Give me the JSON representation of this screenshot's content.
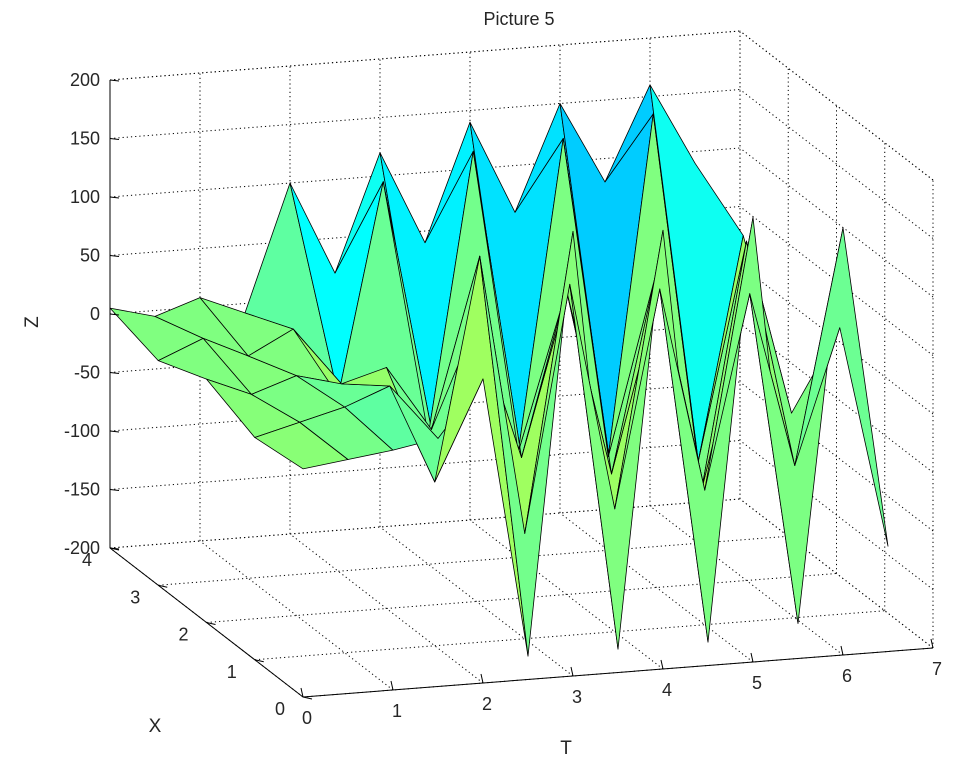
{
  "chart_data": {
    "type": "surface",
    "title": "Picture 5",
    "xlabel": "T",
    "ylabel": "X",
    "zlabel": "Z",
    "t_ticks": [
      "0",
      "1",
      "2",
      "3",
      "4",
      "5",
      "6",
      "7"
    ],
    "x_ticks": [
      "0",
      "1",
      "2",
      "3",
      "4"
    ],
    "z_ticks": [
      "200",
      "150",
      "100",
      "50",
      "0",
      "-50",
      "-100",
      "-150",
      "-200"
    ],
    "t_range": [
      0,
      7
    ],
    "x_range": [
      0,
      4
    ],
    "z_range": [
      -200,
      200
    ],
    "colormap": "jet",
    "grid": true,
    "box": true,
    "surface": {
      "t": [
        0,
        0.5,
        1,
        1.5,
        2,
        2.5,
        3,
        3.5,
        4,
        4.5,
        5,
        5.5,
        6,
        6.5
      ],
      "x": [
        0,
        1,
        2,
        3,
        4
      ],
      "z": [
        [
          -5,
          0,
          5,
          12,
          60,
          -180,
          180,
          -180,
          175,
          -180,
          180,
          -170,
          165,
          -110
        ],
        [
          -10,
          0,
          10,
          25,
          -60,
          130,
          -110,
          100,
          -95,
          90,
          -85,
          80,
          -70,
          45
        ],
        [
          8,
          -8,
          5,
          -5,
          6,
          -50,
          40,
          -80,
          60,
          -100,
          70,
          -120,
          90,
          -60
        ],
        [
          -8,
          8,
          -10,
          10,
          -50,
          130,
          -90,
          150,
          -110,
          155,
          -120,
          170,
          -130,
          60
        ],
        [
          5,
          -5,
          8,
          -8,
          100,
          20,
          120,
          40,
          140,
          60,
          150,
          80,
          160,
          90
        ]
      ]
    }
  }
}
